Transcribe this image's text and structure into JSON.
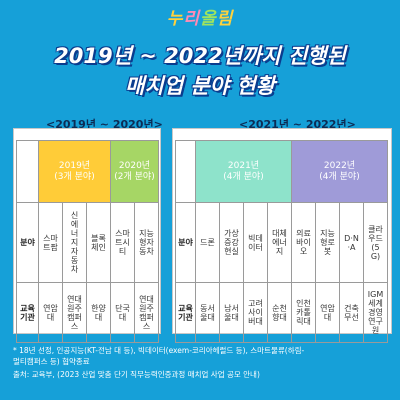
{
  "logo": {
    "chars": [
      "누",
      "리",
      "올",
      "림"
    ]
  },
  "title": {
    "line1": "2019년 ~ 2022년까지 진행된",
    "line2": "매치업 분야 현황"
  },
  "left": {
    "period": "<2019년 ~ 2020년>",
    "groups": [
      {
        "year": "2019년",
        "count": "(3개 분야)"
      },
      {
        "year": "2020년",
        "count": "(2개 분야)"
      }
    ],
    "field_label": "분야",
    "inst_label": "교육기관",
    "fields": [
      "스마트팜",
      "신에너지자동차",
      "블록체인",
      "스마트시티",
      "지능형자동차"
    ],
    "insts": [
      "연암대",
      "연대 원주캠퍼스",
      "한양대",
      "단국대",
      "연대 원주캠퍼스"
    ]
  },
  "right": {
    "period": "<2021년 ~ 2022년>",
    "groups": [
      {
        "year": "2021년",
        "count": "(4개 분야)"
      },
      {
        "year": "2022년",
        "count": "(4개 분야)"
      }
    ],
    "field_label": "분야",
    "inst_label": "교육기관",
    "fields": [
      "드론",
      "가상증강현실",
      "빅데이터",
      "대체에너지",
      "의료바이오",
      "지능형로봇",
      "D·N·A",
      "클라우드(5G)"
    ],
    "insts": [
      "동서울대",
      "남서울대",
      "고려사이버대",
      "순천향대",
      "인천카톨릭대",
      "연암대",
      "건축무선",
      "IGM세계경영연구원"
    ]
  },
  "footnote": {
    "line1": "* 18년 선정, 인공지능(KT-전남 대 등), 빅데이터(exem-코리아헤럴드 등), 스마트물류(하림-",
    "line2": "멀티캠퍼스 등) 협약종료",
    "line3": "출처: 교육부, (2023 산업 맞춤 단기 직무능력인증과정 매치업 사업 공모 안내)"
  },
  "colors": {
    "background": "#16a0d8",
    "y2019": "#ffcc38",
    "y2020": "#a6d665",
    "y2021": "#8ee3cb",
    "y2022": "#9f9bd8"
  }
}
